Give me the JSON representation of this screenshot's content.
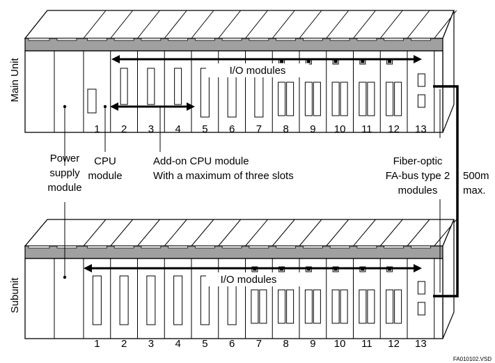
{
  "main_unit": {
    "label": "Main Unit",
    "slot_numbers": [
      "1",
      "2",
      "3",
      "4",
      "5",
      "6",
      "7",
      "8",
      "9",
      "10",
      "11",
      "12",
      "13"
    ],
    "io_label": "I/O modules"
  },
  "subunit": {
    "label": "Subunit",
    "slot_numbers": [
      "1",
      "2",
      "3",
      "4",
      "5",
      "6",
      "7",
      "8",
      "9",
      "10",
      "11",
      "12",
      "13"
    ],
    "io_label": "I/O modules"
  },
  "callouts": {
    "power_supply": [
      "Power",
      "supply",
      "module"
    ],
    "cpu": [
      "CPU",
      "module"
    ],
    "addon_cpu": [
      "Add-on CPU module",
      "With a maximum of three slots"
    ],
    "fiber_optic": [
      "Fiber-optic",
      "FA-bus type 2",
      "modules"
    ],
    "distance": [
      "500m",
      "max."
    ]
  },
  "file_name": "FA010102.VSD",
  "colors": {
    "line": "#000000",
    "band": "#a0a0a0",
    "panel": "#ffffff"
  }
}
